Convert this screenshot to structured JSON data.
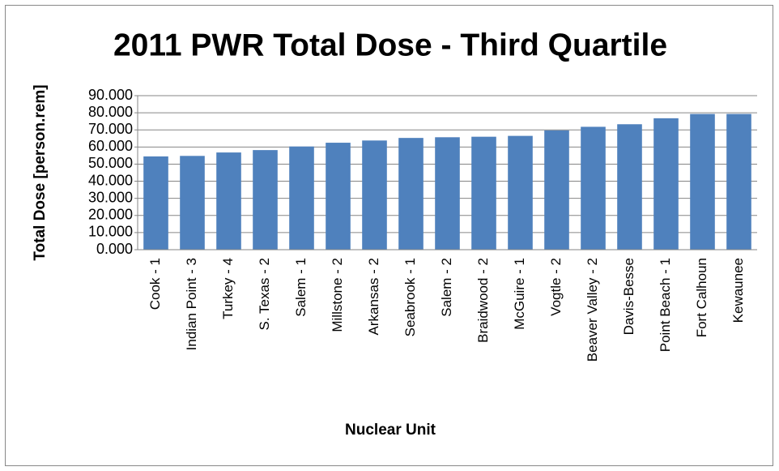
{
  "chart_data": {
    "type": "bar",
    "title": "2011 PWR Total Dose - Third Quartile",
    "x_label": "Nuclear Unit",
    "y_label": "Total Dose [person.rem]",
    "categories": [
      "Cook - 1",
      "Indian Point - 3",
      "Turkey - 4",
      "S. Texas - 2",
      "Salem - 1",
      "Millstone - 2",
      "Arkansas - 2",
      "Seabrook - 1",
      "Salem - 2",
      "Braidwood - 2",
      "McGuire - 1",
      "Vogtle - 2",
      "Beaver Valley - 2",
      "Davis-Besse",
      "Point Beach - 1",
      "Fort Calhoun",
      "Kewaunee"
    ],
    "values": [
      54.5,
      54.8,
      56.8,
      58.2,
      60.3,
      62.5,
      63.8,
      65.3,
      65.7,
      66.0,
      66.5,
      69.7,
      71.8,
      73.3,
      76.8,
      79.3,
      79.3
    ],
    "color": "#4f81bd",
    "ylim": [
      0,
      90
    ],
    "yticks": [
      {
        "value": 0,
        "label": "0.000"
      },
      {
        "value": 10,
        "label": "10.000"
      },
      {
        "value": 20,
        "label": "20.000"
      },
      {
        "value": 30,
        "label": "30.000"
      },
      {
        "value": 40,
        "label": "40.000"
      },
      {
        "value": 50,
        "label": "50.000"
      },
      {
        "value": 60,
        "label": "60.000"
      },
      {
        "value": 70,
        "label": "70.000"
      },
      {
        "value": 80,
        "label": "80.000"
      },
      {
        "value": 90,
        "label": "90.000"
      }
    ],
    "grid": true
  }
}
